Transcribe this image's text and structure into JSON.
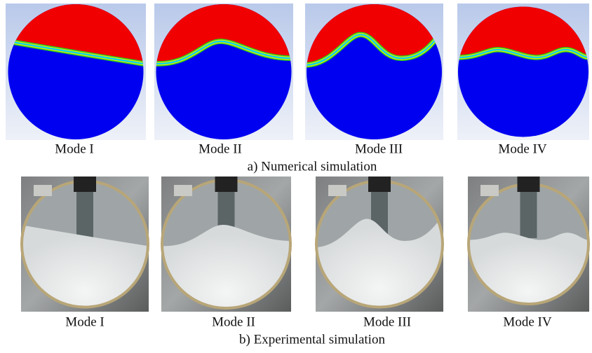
{
  "rows": [
    {
      "caption": "a) Numerical simulation",
      "panels": [
        "Mode I",
        "Mode II",
        "Mode III",
        "Mode IV"
      ]
    },
    {
      "caption": "b) Experimental simulation",
      "panels": [
        "Mode I",
        "Mode II",
        "Mode III",
        "Mode IV"
      ]
    }
  ]
}
